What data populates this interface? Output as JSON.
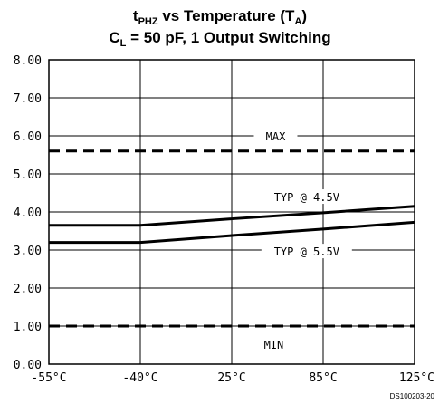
{
  "chart_data": {
    "type": "line",
    "title": {
      "line1": {
        "main": "t",
        "sub": "PHZ",
        "mid": " vs Temperature (T",
        "sub2": "A",
        "end": ")"
      },
      "line2": {
        "main": "C",
        "sub": "L",
        "end": " = 50 pF, 1 Output Switching"
      }
    },
    "categories": [
      "-55°C",
      "-40°C",
      "25°C",
      "85°C",
      "125°C"
    ],
    "ylim": [
      0,
      8
    ],
    "yticks": [
      "0.00",
      "1.00",
      "2.00",
      "3.00",
      "4.00",
      "5.00",
      "6.00",
      "7.00",
      "8.00"
    ],
    "grid": true,
    "series": [
      {
        "name": "MAX",
        "style": "dashed",
        "values": [
          5.6,
          5.6,
          5.6,
          5.6,
          5.6
        ]
      },
      {
        "name": "TYP @ 4.5V",
        "style": "solid",
        "values": [
          3.65,
          3.65,
          3.82,
          3.98,
          4.15
        ]
      },
      {
        "name": "TYP @ 5.5V",
        "style": "solid",
        "values": [
          3.2,
          3.2,
          3.38,
          3.55,
          3.73
        ]
      },
      {
        "name": "MIN",
        "style": "dashed",
        "values": [
          1.0,
          1.0,
          1.0,
          1.0,
          1.0
        ]
      }
    ],
    "figure_code": "DS100203-20"
  }
}
